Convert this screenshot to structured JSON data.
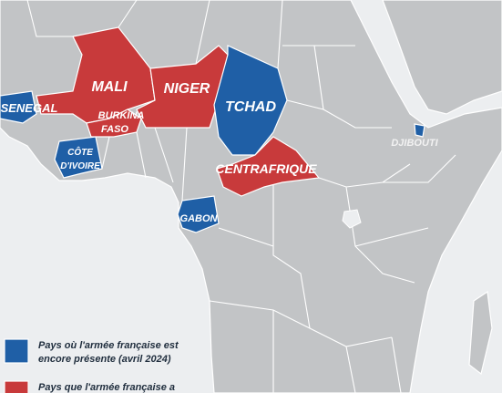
{
  "labels": [
    {
      "text": "SENEGAL"
    },
    {
      "text": "MALI"
    },
    {
      "text": "NIGER"
    },
    {
      "text": "TCHAD"
    },
    {
      "lines": [
        "BURKINA",
        "FASO"
      ]
    },
    {
      "lines": [
        "CÔTE",
        "D'IVOIRE"
      ]
    },
    {
      "text": "CENTRAFRIQUE"
    },
    {
      "text": "GABON"
    },
    {
      "text": "DJIBOUTI"
    }
  ],
  "legend": [
    {
      "lines": [
        "Pays où l'armée française est",
        "encore présente (avril 2024)"
      ]
    },
    {
      "lines": [
        "Pays que l'armée française a"
      ]
    }
  ]
}
